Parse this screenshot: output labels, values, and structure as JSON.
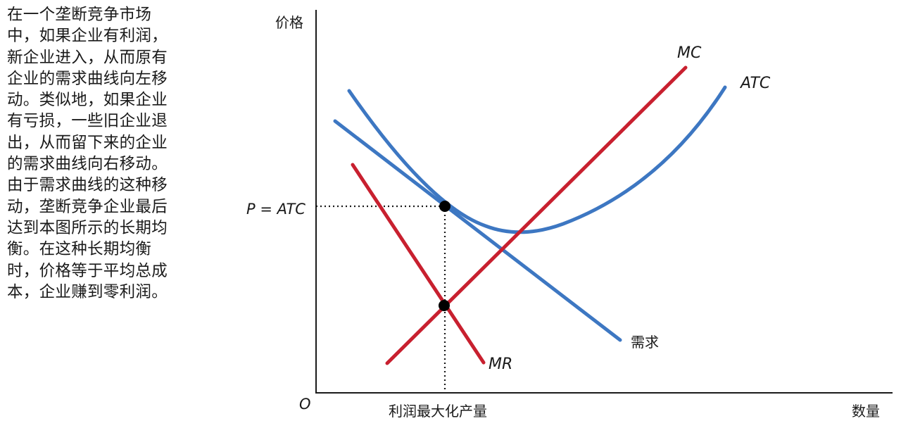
{
  "caption": {
    "lines": [
      "在一个垄断竞争市场",
      "中，如果企业有利润，",
      "新企业进入，从而原有",
      "企业的需求曲线向左移",
      "动。类似地，如果企业",
      "有亏损，一些旧企业退",
      "出，从而留下来的企业",
      "的需求曲线向右移动。",
      "由于需求曲线的这种移",
      "动，垄断竞争企业最后",
      "达到本图所示的长期均",
      "衡。在这种长期均衡",
      "时，价格等于平均总成",
      "本，企业赚到零利润。"
    ]
  },
  "diagram": {
    "y_axis_label": "价格",
    "x_axis_label": "数量",
    "origin_label": "O",
    "price_label": "P = ATC",
    "quantity_label": "利润最大化产量",
    "curves": {
      "mc": "MC",
      "atc": "ATC",
      "demand": "需求",
      "mr": "MR"
    },
    "colors": {
      "blue": "#3d77c2",
      "red": "#c8202f",
      "axis": "#1a1a1a"
    }
  }
}
